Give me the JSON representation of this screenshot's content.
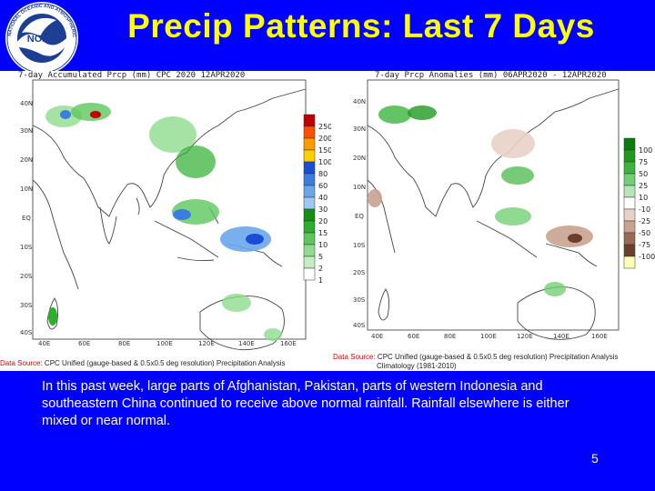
{
  "slide": {
    "title": "Precip Patterns: Last 7 Days",
    "page_number": "5",
    "caption": "In this past week, large parts of Afghanistan, Pakistan, parts of western Indonesia and southeastern China continued to receive above normal rainfall. Rainfall elsewhere is either mixed or near normal."
  },
  "logo": {
    "center_text": "NOAA",
    "ring_text": "NATIONAL OCEANIC AND ATMOSPHERIC ADMINISTRATION"
  },
  "left_map": {
    "header": "7-day Accumulated Prcp (mm)  CPC  2020  12APR2020",
    "source_label": "Data Source:",
    "source_text": " CPC Unified (gauge-based & 0.5x0.5 deg resolution) Precipitation Analysis",
    "x_ticks": [
      "40E",
      "60E",
      "80E",
      "100E",
      "120E",
      "140E",
      "160E"
    ],
    "y_ticks": [
      "40N",
      "30N",
      "20N",
      "10N",
      "EQ",
      "10S",
      "20S",
      "30S",
      "40S"
    ],
    "legend": [
      "250",
      "200",
      "150",
      "100",
      "80",
      "60",
      "40",
      "30",
      "20",
      "15",
      "10",
      "5",
      "2",
      "1"
    ],
    "legend_colors": [
      "#c00000",
      "#ff5000",
      "#ff9a00",
      "#ffd000",
      "#1b4ed8",
      "#3c7de0",
      "#6aa6ec",
      "#9cc8f4",
      "#129012",
      "#2dae2d",
      "#5cc85c",
      "#8edc8e",
      "#c2eec2",
      "#ffffff"
    ]
  },
  "right_map": {
    "header": "7-day Prcp Anomalies (mm)  06APR2020 - 12APR2020",
    "source_label": "Data Source:",
    "source_text": " CPC Unified (gauge-based & 0.5x0.5 deg resolution) Precipitation Analysis",
    "source_text2": "Climatology (1981-2010)",
    "x_ticks": [
      "40E",
      "60E",
      "80E",
      "100E",
      "120E",
      "140E",
      "160E"
    ],
    "y_ticks": [
      "40N",
      "30N",
      "20N",
      "10N",
      "EQ",
      "10S",
      "20S",
      "30S",
      "40S"
    ],
    "legend": [
      "100",
      "75",
      "50",
      "25",
      "10",
      "-10",
      "-25",
      "-50",
      "-75",
      "-100"
    ],
    "legend_colors": [
      "#0c7a0c",
      "#1f9a1f",
      "#3db43d",
      "#74cf74",
      "#b5e6b5",
      "#ffffff",
      "#e8d2c8",
      "#c9a290",
      "#9b6a55",
      "#6b3f2c",
      "#ffffb8"
    ]
  }
}
